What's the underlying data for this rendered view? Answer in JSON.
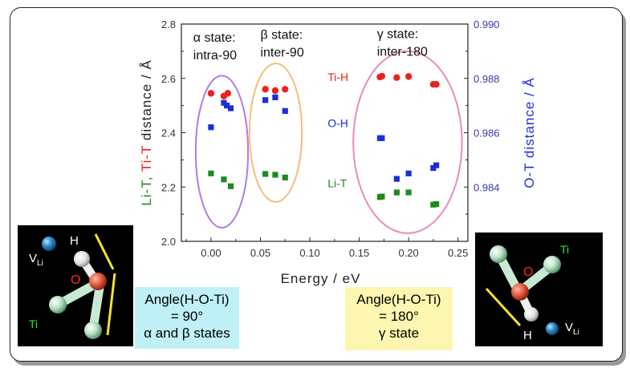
{
  "chart_data": {
    "type": "scatter",
    "xlabel": "Energy  /  eV",
    "ylabel_left_parts": [
      "Li-T, ",
      "Ti-T",
      " distance  /  Å"
    ],
    "ylabel_right": "O-T distance / Å",
    "xlim": [
      -0.03,
      0.26
    ],
    "ylim_left": [
      2.0,
      2.8
    ],
    "ylim_right": [
      0.982,
      0.99
    ],
    "x_ticks": [
      "0.00",
      "0.05",
      "0.10",
      "0.15",
      "0.20",
      "0.25"
    ],
    "x_tick_values": [
      0.0,
      0.05,
      0.1,
      0.15,
      0.2,
      0.25
    ],
    "y_left_ticks": [
      "2.0",
      "2.2",
      "2.4",
      "2.6",
      "2.8"
    ],
    "y_left_tick_values": [
      2.0,
      2.2,
      2.4,
      2.6,
      2.8
    ],
    "y_right_ticks": [
      "0.984",
      "0.986",
      "0.988",
      "0.990"
    ],
    "y_right_tick_values": [
      0.984,
      0.986,
      0.988,
      0.99
    ],
    "series": [
      {
        "name": "Ti-H",
        "axis": "left",
        "marker": "circle",
        "color": "#e8231e",
        "points": [
          [
            0.0,
            2.545
          ],
          [
            0.013,
            2.535
          ],
          [
            0.017,
            2.545
          ],
          [
            0.055,
            2.56
          ],
          [
            0.065,
            2.555
          ],
          [
            0.075,
            2.56
          ],
          [
            0.171,
            2.605
          ],
          [
            0.173,
            2.608
          ],
          [
            0.188,
            2.603
          ],
          [
            0.2,
            2.607
          ],
          [
            0.225,
            2.578
          ],
          [
            0.228,
            2.578
          ]
        ]
      },
      {
        "name": "O-H",
        "axis": "right",
        "marker": "square",
        "color": "#1a2fd8",
        "points": [
          [
            0.0,
            0.9862
          ],
          [
            0.013,
            0.9871
          ],
          [
            0.016,
            0.987
          ],
          [
            0.02,
            0.9869
          ],
          [
            0.055,
            0.9872
          ],
          [
            0.065,
            0.9873
          ],
          [
            0.075,
            0.9868
          ],
          [
            0.171,
            0.9858
          ],
          [
            0.173,
            0.9858
          ],
          [
            0.188,
            0.9843
          ],
          [
            0.2,
            0.9845
          ],
          [
            0.225,
            0.9847
          ],
          [
            0.228,
            0.9848
          ]
        ]
      },
      {
        "name": "Li-T",
        "axis": "left",
        "marker": "square",
        "color": "#1f8a1f",
        "points": [
          [
            0.0,
            2.25
          ],
          [
            0.013,
            2.228
          ],
          [
            0.02,
            2.203
          ],
          [
            0.055,
            2.248
          ],
          [
            0.065,
            2.245
          ],
          [
            0.075,
            2.235
          ],
          [
            0.171,
            2.163
          ],
          [
            0.173,
            2.165
          ],
          [
            0.188,
            2.18
          ],
          [
            0.2,
            2.18
          ],
          [
            0.225,
            2.135
          ],
          [
            0.228,
            2.137
          ]
        ]
      }
    ],
    "series_labels": [
      {
        "text": "Ti-H",
        "color": "#e8231e",
        "x": 0.118,
        "y": 2.59
      },
      {
        "text": "O-H",
        "color": "#1a2fd8",
        "x": 0.118,
        "y": 2.42
      },
      {
        "text": "Li-T",
        "color": "#1f8a1f",
        "x": 0.118,
        "y": 2.2
      }
    ],
    "state_groups": [
      {
        "lines": [
          "α state:",
          "intra-90"
        ],
        "color": "#b27be0",
        "center_x": 0.011,
        "center_y": 2.33,
        "half_width_x": 0.0265,
        "half_height_y": 0.28,
        "label_x": -0.018,
        "label_y": 2.735
      },
      {
        "lines": [
          "β state:",
          "inter-90"
        ],
        "color": "#f0c07a",
        "center_x": 0.0655,
        "center_y": 2.4,
        "half_width_x": 0.0265,
        "half_height_y": 0.255,
        "label_x": 0.05,
        "label_y": 2.745
      },
      {
        "lines": [
          "γ state:",
          "inter-180"
        ],
        "color": "#e78bbd",
        "center_x": 0.199,
        "center_y": 2.365,
        "half_width_x": 0.055,
        "half_height_y": 0.335,
        "label_x": 0.168,
        "label_y": 2.748
      }
    ]
  },
  "structures": {
    "left": {
      "labels": {
        "h": "H",
        "v": "V",
        "v_sub": "Li",
        "o": "O",
        "ti": "Ti"
      },
      "info_lines": [
        "Angle(H-O-Ti)",
        "= 90°",
        "α and β states"
      ],
      "info_bg": "#bff0f5"
    },
    "right": {
      "labels": {
        "h": "H",
        "v": "V",
        "v_sub": "Li",
        "o": "O",
        "ti": "Ti"
      },
      "info_lines": [
        "Angle(H-O-Ti)",
        "= 180°",
        "γ state"
      ],
      "info_bg": "#fdf6b0"
    }
  }
}
